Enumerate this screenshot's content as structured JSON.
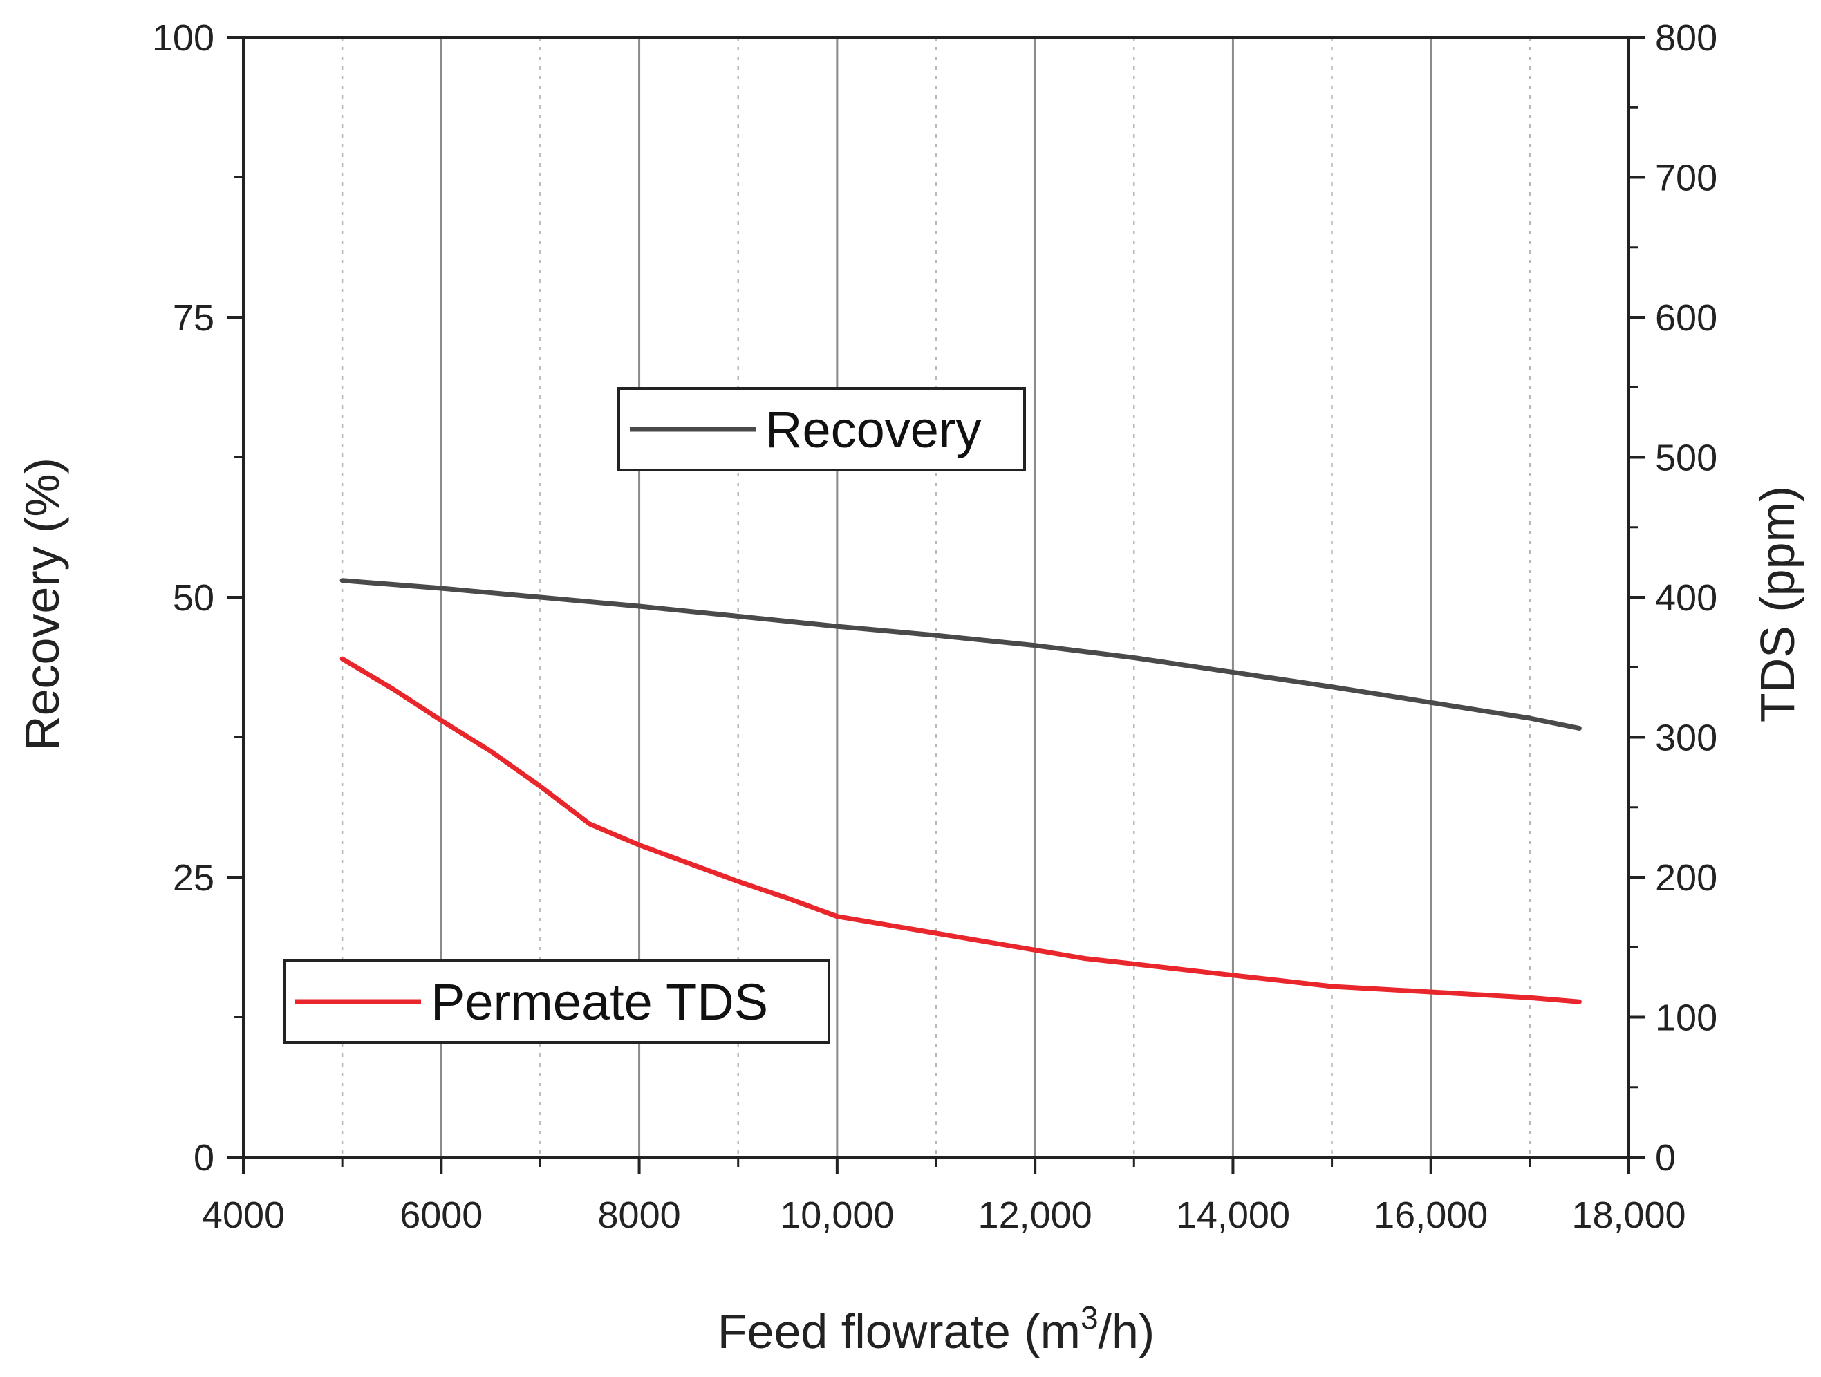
{
  "chart_data": {
    "type": "line",
    "title": "",
    "xlabel": {
      "main": "Feed flowrate (m",
      "sup": "3",
      "tail": "/h)"
    },
    "ylabel_left": "Recovery (%)",
    "ylabel_right": "TDS (ppm)",
    "xlim": [
      4000,
      18000
    ],
    "ylim_left": [
      0,
      100
    ],
    "ylim_right": [
      0,
      800
    ],
    "grid": true,
    "x_ticks": [
      {
        "value": 4000,
        "label": "4000"
      },
      {
        "value": 6000,
        "label": "6000"
      },
      {
        "value": 8000,
        "label": "8000"
      },
      {
        "value": 10000,
        "label": "10,000"
      },
      {
        "value": 12000,
        "label": "12,000"
      },
      {
        "value": 14000,
        "label": "14,000"
      },
      {
        "value": 16000,
        "label": "16,000"
      },
      {
        "value": 18000,
        "label": "18,000"
      }
    ],
    "y_left_ticks": [
      {
        "value": 0,
        "label": "0"
      },
      {
        "value": 25,
        "label": "25"
      },
      {
        "value": 50,
        "label": "50"
      },
      {
        "value": 75,
        "label": "75"
      },
      {
        "value": 100,
        "label": "100"
      }
    ],
    "y_right_ticks": [
      {
        "value": 0,
        "label": "0"
      },
      {
        "value": 100,
        "label": "100"
      },
      {
        "value": 200,
        "label": "200"
      },
      {
        "value": 300,
        "label": "300"
      },
      {
        "value": 400,
        "label": "400"
      },
      {
        "value": 500,
        "label": "500"
      },
      {
        "value": 600,
        "label": "600"
      },
      {
        "value": 700,
        "label": "700"
      },
      {
        "value": 800,
        "label": "800"
      }
    ],
    "series": [
      {
        "name": "Recovery",
        "axis": "left",
        "color": "#4a4a4a",
        "x": [
          5000,
          6000,
          7000,
          8000,
          9000,
          10000,
          11000,
          12000,
          13000,
          14000,
          15000,
          16000,
          17000,
          17500
        ],
        "values": [
          51.5,
          50.8,
          50.0,
          49.2,
          48.3,
          47.4,
          46.6,
          45.7,
          44.6,
          43.3,
          42.0,
          40.6,
          39.2,
          38.3
        ]
      },
      {
        "name": "Permeate TDS",
        "axis": "right",
        "color": "#e8262b",
        "x": [
          5000,
          5500,
          6000,
          6500,
          7000,
          7500,
          8000,
          8500,
          9000,
          9500,
          10000,
          10500,
          11000,
          11500,
          12000,
          12500,
          13000,
          13500,
          14000,
          14500,
          15000,
          15500,
          16000,
          16500,
          17000,
          17500
        ],
        "values": [
          356,
          335,
          312,
          290,
          265,
          238,
          223,
          210,
          197,
          185,
          172,
          166,
          160,
          154,
          148,
          142,
          138,
          134,
          130,
          126,
          122,
          120,
          118,
          116,
          114,
          111
        ]
      }
    ],
    "legend": [
      {
        "series": "Recovery",
        "label": "Recovery",
        "placement": "upper-middle"
      },
      {
        "series": "Permeate TDS",
        "label": "Permeate TDS",
        "placement": "lower-left"
      }
    ]
  }
}
